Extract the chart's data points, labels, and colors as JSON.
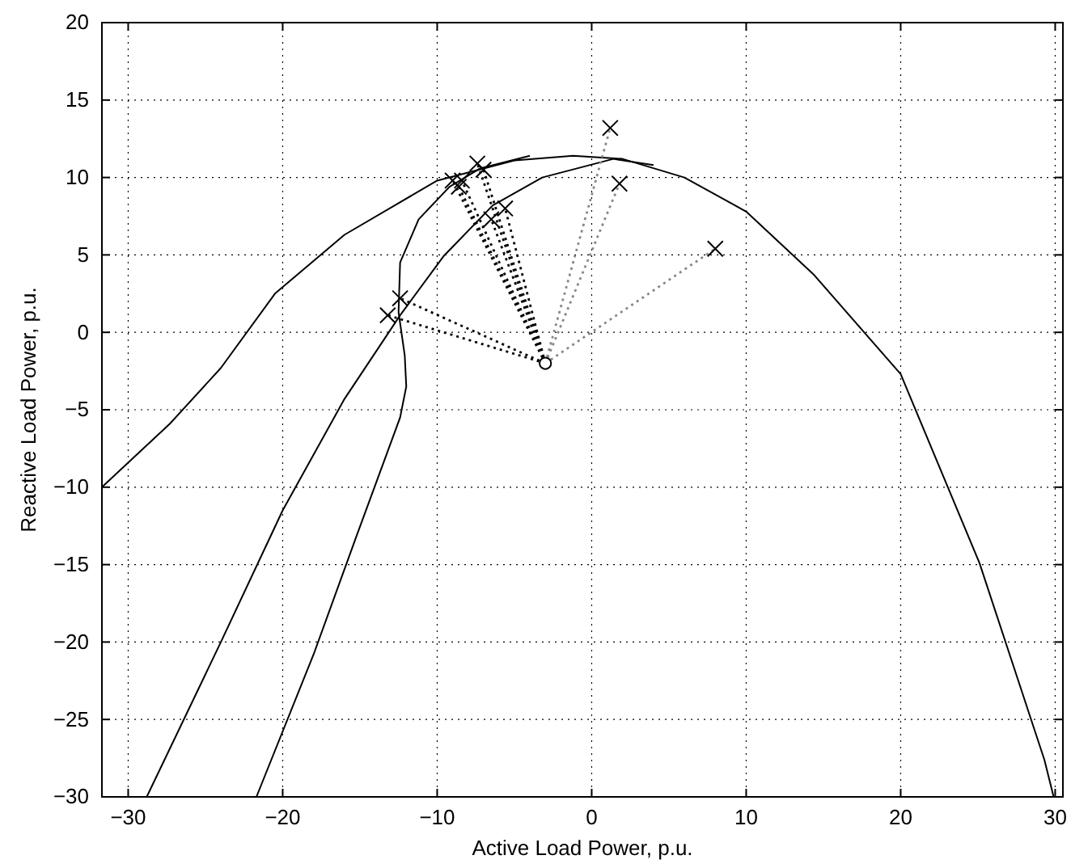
{
  "chart_data": {
    "type": "line",
    "xlabel": "Active Load Power, p.u.",
    "ylabel": "Reactive Load Power, p.u.",
    "xlim": [
      -31.7,
      30.5
    ],
    "ylim": [
      -30,
      20
    ],
    "xticks": [
      -30,
      -20,
      -10,
      0,
      10,
      20,
      30
    ],
    "yticks": [
      -30,
      -25,
      -20,
      -15,
      -10,
      -5,
      0,
      5,
      10,
      15,
      20
    ],
    "grid": true,
    "series": [
      {
        "color": "#000000",
        "marker": "none",
        "line_style": "solid",
        "x": [
          -31.7,
          -27.3,
          -24,
          -20.5,
          -16,
          -10,
          -5,
          -1.2,
          2,
          6,
          10,
          14.4,
          20,
          25.1,
          29.3,
          29.9
        ],
        "values": [
          -10,
          -5.9,
          -2.3,
          2.5,
          6.3,
          9.8,
          11.1,
          11.4,
          11.2,
          10,
          7.8,
          3.7,
          -2.7,
          -14.9,
          -27.6,
          -30
        ]
      },
      {
        "color": "#000000",
        "marker": "none",
        "line_style": "solid",
        "x": [
          -28.8,
          -24,
          -20,
          -16,
          -12.4,
          -9.6,
          -6.4,
          -3.2,
          1.4,
          4
        ],
        "values": [
          -30,
          -20,
          -11.5,
          -4.3,
          1.1,
          4.9,
          8.2,
          10,
          11.2,
          10.8
        ]
      },
      {
        "color": "#000000",
        "marker": "none",
        "line_style": "solid",
        "x": [
          -21.7,
          -18,
          -15.2,
          -12.4,
          -12,
          -12.1,
          -12.5,
          -12.4,
          -11.2,
          -9.2,
          -7.2,
          -4
        ],
        "values": [
          -30,
          -20.8,
          -13.1,
          -5.5,
          -3.5,
          -1.5,
          1.3,
          4.5,
          7.3,
          9.4,
          10.6,
          11.4
        ]
      },
      {
        "color": "#888888",
        "marker": "none",
        "line_style": "dotted",
        "x": [
          -3,
          1.2,
          null,
          -3,
          1.8,
          null,
          -3,
          8
        ],
        "values": [
          -2,
          13.2,
          null,
          -2,
          9.6,
          null,
          -2,
          5.4
        ]
      },
      {
        "color": "#000000",
        "marker": "none",
        "line_style": "dotted",
        "x": [
          -3,
          -13.2,
          null,
          -3,
          -12.4,
          null,
          -3,
          -7.4,
          null,
          -3,
          -7,
          null,
          -3,
          -9,
          null,
          -3,
          -8.6,
          null,
          -3,
          -8.4,
          null,
          -3,
          -6.5,
          null,
          -3,
          -5.6
        ],
        "values": [
          -2,
          1.1,
          null,
          -2,
          2.2,
          null,
          -2,
          10.9,
          null,
          -2,
          10.5,
          null,
          -2,
          9.8,
          null,
          -2,
          9.4,
          null,
          -2,
          9.8,
          null,
          -2,
          7.3,
          null,
          -2,
          8
        ]
      },
      {
        "type": "scatter",
        "color": "#000000",
        "marker": "cross",
        "x": [
          1.2,
          1.8,
          8,
          -13.2,
          -12.4,
          -7.4,
          -7,
          -9,
          -8.6,
          -8.4,
          -6.5,
          -5.6
        ],
        "values": [
          13.2,
          9.6,
          5.4,
          1.1,
          2.2,
          10.9,
          10.5,
          9.8,
          9.4,
          9.8,
          7.3,
          8
        ]
      },
      {
        "type": "scatter",
        "color": "#000000",
        "marker": "circle",
        "x": [
          -3
        ],
        "values": [
          -2
        ]
      }
    ]
  }
}
